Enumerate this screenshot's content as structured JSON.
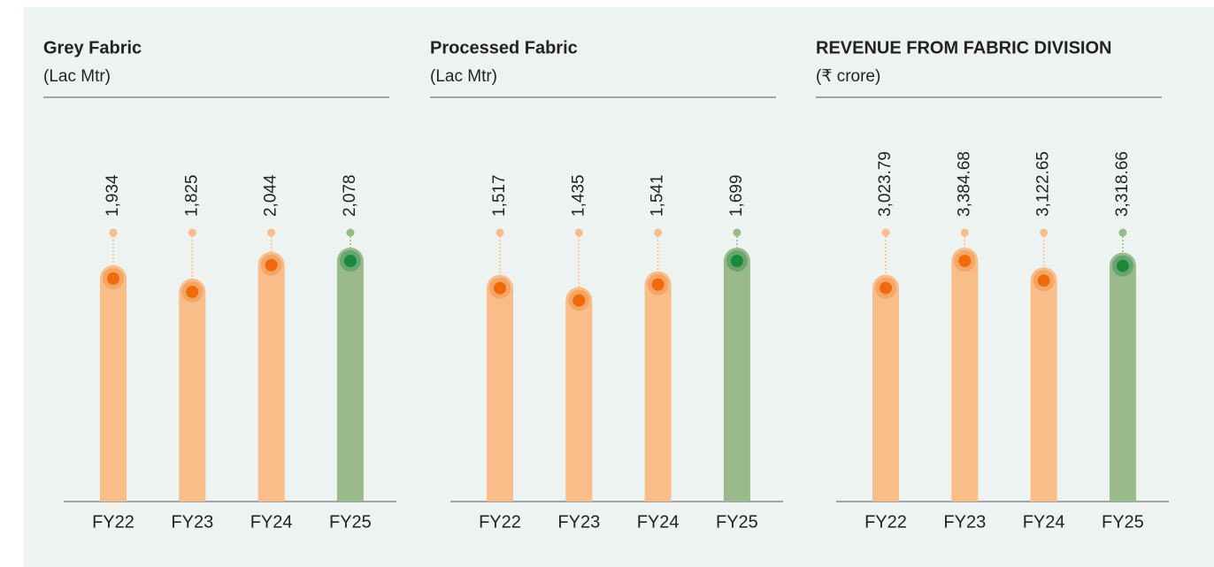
{
  "chart_data": [
    {
      "type": "bar",
      "title": "Grey Fabric",
      "subtitle": "(Lac Mtr)",
      "categories": [
        "FY22",
        "FY23",
        "FY24",
        "FY25"
      ],
      "values": [
        1934,
        1825,
        2044,
        2078
      ],
      "value_labels": [
        "1,934",
        "1,825",
        "2,044",
        "2,078"
      ],
      "colors": [
        "#f9bd8a",
        "#f9bd8a",
        "#f9bd8a",
        "#9aba8c"
      ]
    },
    {
      "type": "bar",
      "title": "Processed Fabric",
      "subtitle": "(Lac Mtr)",
      "categories": [
        "FY22",
        "FY23",
        "FY24",
        "FY25"
      ],
      "values": [
        1517,
        1435,
        1541,
        1699
      ],
      "value_labels": [
        "1,517",
        "1,435",
        "1,541",
        "1,699"
      ],
      "colors": [
        "#f9bd8a",
        "#f9bd8a",
        "#f9bd8a",
        "#9aba8c"
      ]
    },
    {
      "type": "bar",
      "title": "REVENUE FROM FABRIC DIVISION",
      "subtitle": "(₹ crore)",
      "categories": [
        "FY22",
        "FY23",
        "FY24",
        "FY25"
      ],
      "values": [
        3023.79,
        3384.68,
        3122.65,
        3318.66
      ],
      "value_labels": [
        "3,023.79",
        "3,384.68",
        "3,122.65",
        "3,318.66"
      ],
      "colors": [
        "#f9bd8a",
        "#f9bd8a",
        "#f9bd8a",
        "#9aba8c"
      ]
    }
  ]
}
